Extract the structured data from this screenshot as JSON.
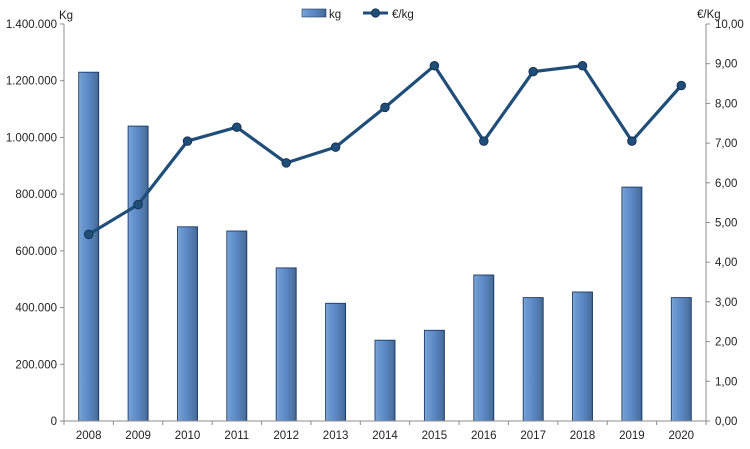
{
  "chart_data": {
    "type": "bar",
    "combo": "bar+line",
    "categories": [
      "2008",
      "2009",
      "2010",
      "2011",
      "2012",
      "2013",
      "2014",
      "2015",
      "2016",
      "2017",
      "2018",
      "2019",
      "2020"
    ],
    "series": [
      {
        "name": "kg",
        "type": "bar",
        "axis": "left",
        "values": [
          1230000,
          1040000,
          685000,
          670000,
          540000,
          415000,
          285000,
          320000,
          515000,
          435000,
          455000,
          825000,
          435000
        ]
      },
      {
        "name": "€/kg",
        "type": "line",
        "axis": "right",
        "values": [
          4.7,
          5.45,
          7.05,
          7.4,
          6.5,
          6.9,
          7.9,
          8.95,
          7.05,
          8.8,
          8.95,
          7.05,
          8.45
        ]
      }
    ],
    "left_axis": {
      "title": "Kg",
      "min": 0,
      "max": 1400000,
      "tick_step": 200000,
      "tick_labels": [
        "0",
        "200.000",
        "400.000",
        "600.000",
        "800.000",
        "1.000.000",
        "1.200.000",
        "1.400.000"
      ]
    },
    "right_axis": {
      "title": "€/Kg",
      "min": 0,
      "max": 10,
      "tick_step": 1,
      "tick_labels": [
        "0,00",
        "1,00",
        "2,00",
        "3,00",
        "4,00",
        "5,00",
        "6,00",
        "7,00",
        "8,00",
        "9,00",
        "10,00"
      ]
    },
    "title": "",
    "legend_position": "top-center",
    "grid": false
  },
  "legend": {
    "bar_label": "kg",
    "line_label": "€/kg"
  },
  "colors": {
    "bar_fill_light": "#85abdc",
    "bar_fill_mid": "#5b87c5",
    "bar_fill_dark": "#44689e",
    "bar_border": "#1c3a66",
    "line": "#1f4e79",
    "marker": "#1f4e79",
    "marker_border": "#14304f",
    "axis_line": "#8c8c8c",
    "text": "#1f1f1f"
  }
}
